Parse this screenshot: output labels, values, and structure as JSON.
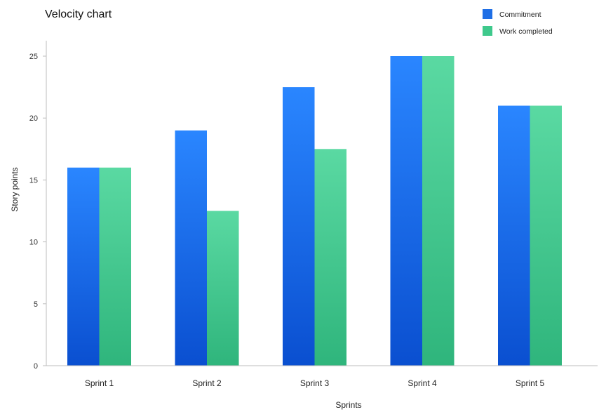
{
  "chart_data": {
    "type": "bar",
    "title": "Velocity chart",
    "xlabel": "Sprints",
    "ylabel": "Story points",
    "categories": [
      "Sprint 1",
      "Sprint 2",
      "Sprint 3",
      "Sprint 4",
      "Sprint 5"
    ],
    "series": [
      {
        "name": "Commitment",
        "values": [
          16,
          19,
          22.5,
          25,
          21
        ],
        "color": "#1f6fe6"
      },
      {
        "name": "Work completed",
        "values": [
          16,
          12.5,
          17.5,
          25,
          21
        ],
        "color": "#3fc98c"
      }
    ],
    "ylim": [
      0,
      25
    ],
    "yticks": [
      0,
      5,
      10,
      15,
      20,
      25
    ],
    "grid": false,
    "legend_position": "top-right"
  }
}
